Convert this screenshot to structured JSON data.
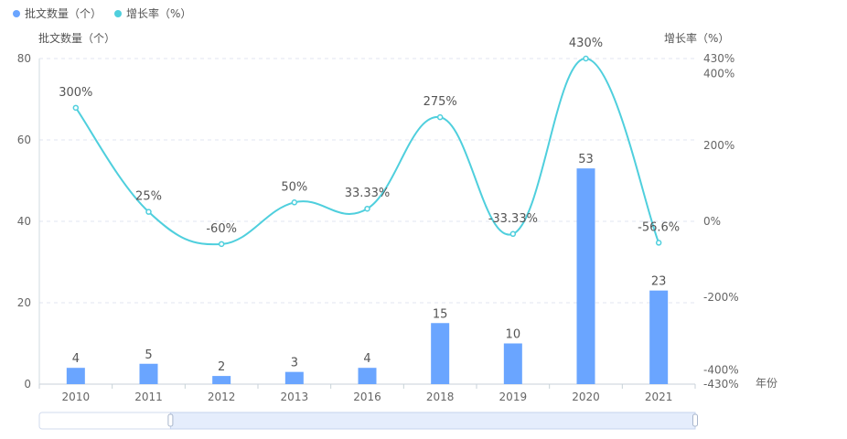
{
  "legend": [
    {
      "label": "批文数量（个）",
      "color": "#6aa5ff"
    },
    {
      "label": "增长率（%）",
      "color": "#4fcfdd"
    }
  ],
  "chart_data": {
    "type": "bar+line",
    "categories": [
      "2010",
      "2011",
      "2012",
      "2013",
      "2016",
      "2018",
      "2019",
      "2020",
      "2021"
    ],
    "series": [
      {
        "name": "批文数量（个）",
        "type": "bar",
        "axis": "left",
        "values": [
          4,
          5,
          2,
          3,
          4,
          15,
          10,
          53,
          23
        ],
        "labels": [
          "4",
          "5",
          "2",
          "3",
          "4",
          "15",
          "10",
          "53",
          "23"
        ],
        "color": "#6aa5ff"
      },
      {
        "name": "增长率（%）",
        "type": "line",
        "smooth": true,
        "axis": "right",
        "values": [
          300,
          25,
          -60,
          50,
          33.33,
          275,
          -33.33,
          430,
          -56.6
        ],
        "labels": [
          "300%",
          "25%",
          "-60%",
          "50%",
          "33.33%",
          "275%",
          "-33.33%",
          "430%",
          "-56.6%"
        ],
        "color": "#4fcfdd"
      }
    ],
    "y_left": {
      "label": "批文数量（个）",
      "range": [
        0,
        80
      ],
      "ticks": [
        "0",
        "20",
        "40",
        "60",
        "80"
      ]
    },
    "y_right": {
      "label": "增长率（%）",
      "range": [
        -430,
        430
      ],
      "ticks": [
        {
          "v": -430,
          "t": "-430%"
        },
        {
          "v": -400,
          "t": "-400%"
        },
        {
          "v": -200,
          "t": "-200%"
        },
        {
          "v": 0,
          "t": "0%"
        },
        {
          "v": 200,
          "t": "200%"
        },
        {
          "v": 400,
          "t": "400%"
        },
        {
          "v": 430,
          "t": "430%"
        }
      ]
    },
    "xlabel": "年份",
    "grid": true,
    "legend_position": "top-left"
  },
  "datazoom": {
    "start_percent": 20,
    "end_percent": 100
  }
}
